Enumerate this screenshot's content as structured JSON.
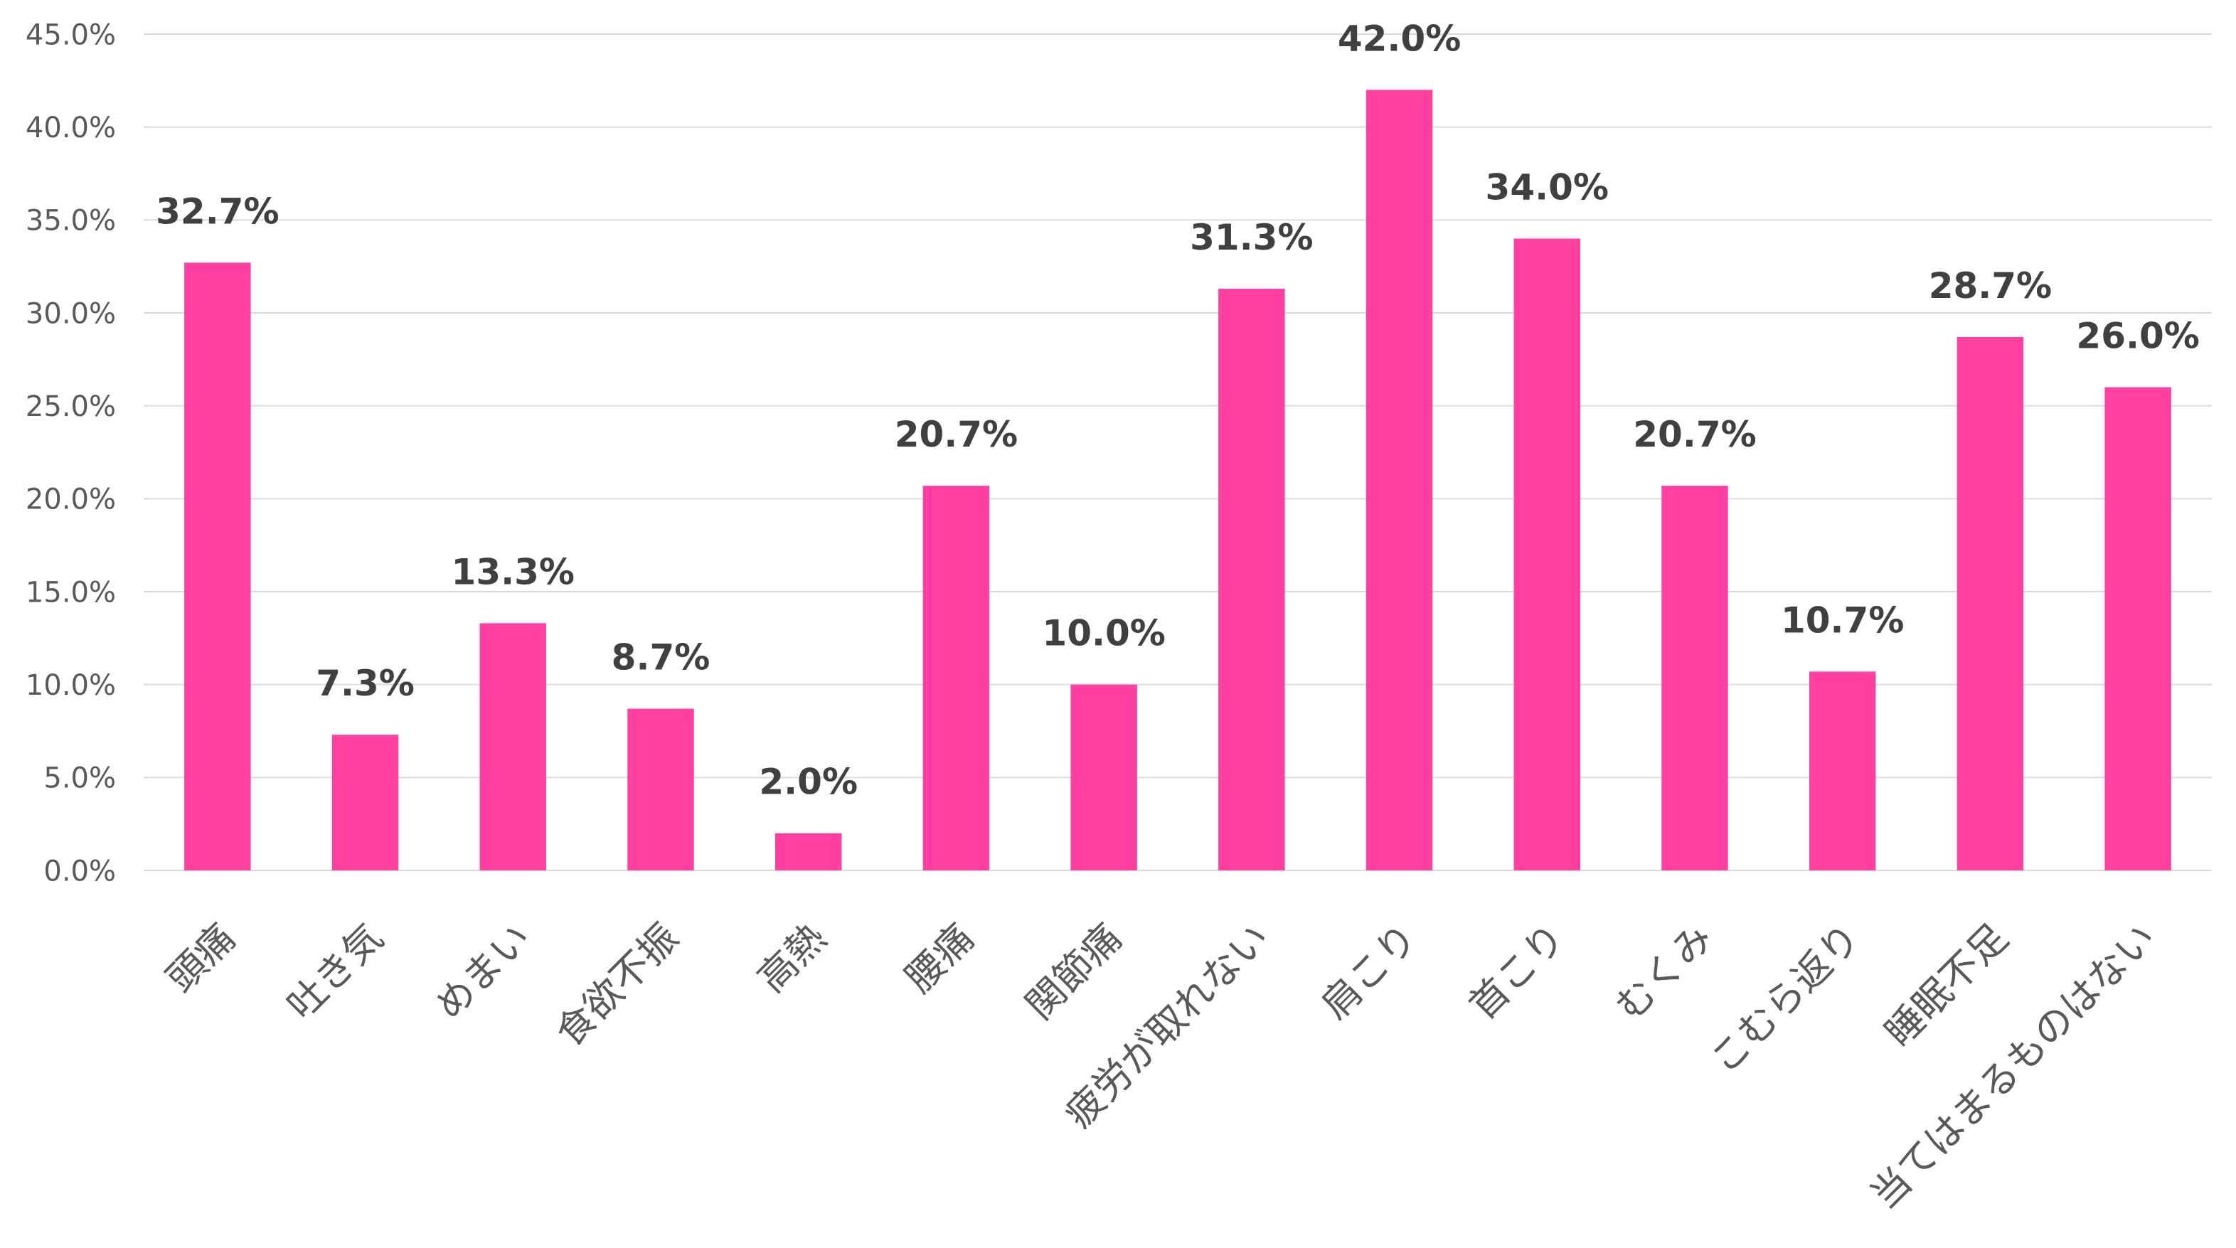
{
  "chart_data": {
    "type": "bar",
    "categories": [
      "頭痛",
      "吐き気",
      "めまい",
      "食欲不振",
      "高熱",
      "腰痛",
      "関節痛",
      "疲労が取れない",
      "肩こり",
      "首こり",
      "むくみ",
      "こむら返り",
      "睡眠不足",
      "当てはまるものはない"
    ],
    "values": [
      32.7,
      7.3,
      13.3,
      8.7,
      2.0,
      20.7,
      10.0,
      31.3,
      42.0,
      34.0,
      20.7,
      10.7,
      28.7,
      26.0
    ],
    "data_labels": [
      "32.7%",
      "7.3%",
      "13.3%",
      "8.7%",
      "2.0%",
      "20.7%",
      "10.0%",
      "31.3%",
      "42.0%",
      "34.0%",
      "20.7%",
      "10.7%",
      "28.7%",
      "26.0%"
    ],
    "ylim": [
      0,
      45
    ],
    "yticks": [
      0,
      5,
      10,
      15,
      20,
      25,
      30,
      35,
      40,
      45
    ],
    "ytick_labels": [
      "0.0%",
      "5.0%",
      "10.0%",
      "15.0%",
      "20.0%",
      "25.0%",
      "30.0%",
      "35.0%",
      "40.0%",
      "45.0%"
    ],
    "grid": true,
    "colors": {
      "bar": "#FF40A0",
      "gridline": "#D9D9D9",
      "axis_text": "#595959",
      "data_label_text": "#404040"
    }
  }
}
